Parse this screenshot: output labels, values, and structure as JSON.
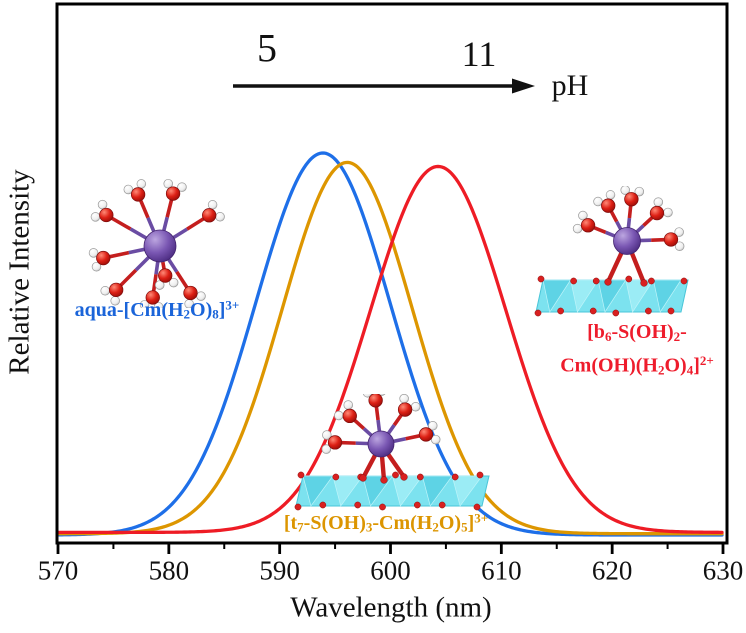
{
  "figure": {
    "y_axis_label": "Relative Intensity",
    "x_axis_label": "Wavelength (nm)",
    "ph_scale": {
      "start": "5",
      "end": "11",
      "label": "pH"
    }
  },
  "species_labels": {
    "aqua": {
      "color": "#1a64d9",
      "line": [
        {
          "t": "aqua-[Cm(H"
        },
        {
          "t": "2",
          "sub": true
        },
        {
          "t": "O)"
        },
        {
          "t": "8",
          "sub": true
        },
        {
          "t": "]"
        },
        {
          "t": "3+",
          "sup": true
        }
      ]
    },
    "t7": {
      "color": "#dc9500",
      "line": [
        {
          "t": "[t"
        },
        {
          "t": "7",
          "sub": true
        },
        {
          "t": "-S(OH)"
        },
        {
          "t": "3",
          "sub": true
        },
        {
          "t": "-Cm(H"
        },
        {
          "t": "2",
          "sub": true
        },
        {
          "t": "O)"
        },
        {
          "t": "5",
          "sub": true
        },
        {
          "t": "]"
        },
        {
          "t": "3+",
          "sup": true
        }
      ]
    },
    "b6": {
      "color": "#ee1c2c",
      "line1": [
        {
          "t": "[b"
        },
        {
          "t": "6",
          "sub": true
        },
        {
          "t": "-S(OH)"
        },
        {
          "t": "2",
          "sub": true
        },
        {
          "t": "-"
        }
      ],
      "line2": [
        {
          "t": "Cm(OH)(H"
        },
        {
          "t": "2",
          "sub": true
        },
        {
          "t": "O)"
        },
        {
          "t": "4",
          "sub": true
        },
        {
          "t": "]"
        },
        {
          "t": "2+",
          "sup": true
        }
      ]
    }
  },
  "chart_data": {
    "type": "line",
    "title": "",
    "xlabel": "Wavelength (nm)",
    "ylabel": "Relative Intensity",
    "xlim": [
      570,
      630
    ],
    "x_ticks": [
      570,
      580,
      590,
      600,
      610,
      620,
      630
    ],
    "x_minor_tick_step": 5,
    "ylim_note": "relative intensity, unlabeled axis from 0 to 1",
    "grid": false,
    "legend": "inline colored species labels",
    "annotations": {
      "ph_arrow": {
        "from": "5",
        "to": "11",
        "label": "pH",
        "direction": "right"
      }
    },
    "series": [
      {
        "name": "aqua-[Cm(H2O)8]3+",
        "color": "#1e6fe8",
        "profile": "gaussian",
        "peak_nm": 593.9,
        "fwhm_nm": 14.3,
        "relative_intensity": 1.0
      },
      {
        "name": "[t7-S(OH)3-Cm(H2O)5]3+",
        "color": "#dd9600",
        "profile": "gaussian",
        "peak_nm": 596.1,
        "fwhm_nm": 13.8,
        "relative_intensity": 0.972
      },
      {
        "name": "[b6-S(OH)2-Cm(OH)(H2O)4]2+",
        "color": "#ee1c25",
        "profile": "gaussian",
        "peak_nm": 604.3,
        "fwhm_nm": 14.4,
        "relative_intensity": 0.958
      }
    ]
  }
}
